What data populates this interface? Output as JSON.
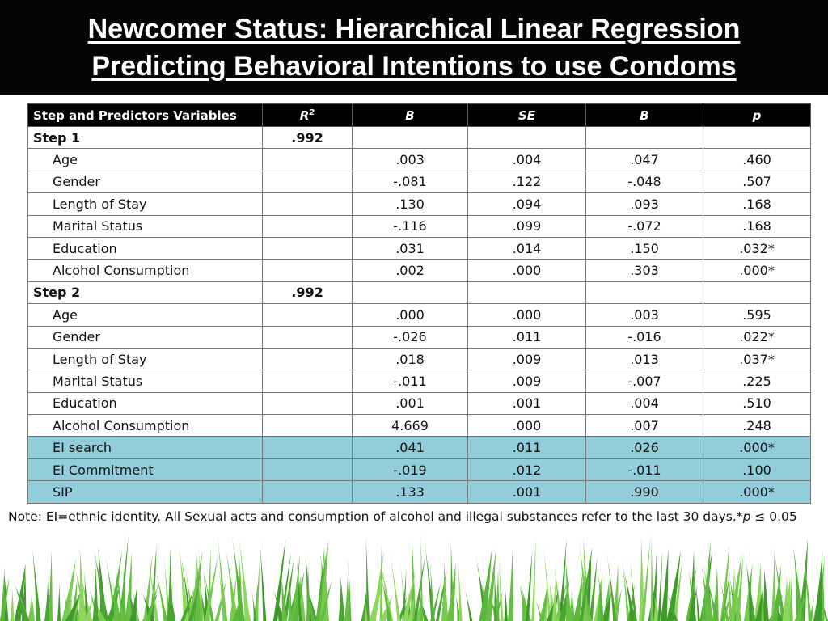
{
  "title": {
    "line1": "Newcomer Status: Hierarchical Linear Regression",
    "line2": "Predicting Behavioral Intentions to use Condoms"
  },
  "table": {
    "headers": [
      "Step and Predictors Variables",
      "R",
      "2",
      "B",
      "SE",
      "Β",
      "p"
    ],
    "rows": [
      {
        "label": "Step 1",
        "r2": ".992",
        "b": "",
        "se": "",
        "beta": "",
        "p": "",
        "step": true
      },
      {
        "label": "Age",
        "r2": "",
        "b": ".003",
        "se": ".004",
        "beta": ".047",
        "p": ".460"
      },
      {
        "label": "Gender",
        "r2": "",
        "b": "-.081",
        "se": ".122",
        "beta": "-.048",
        "p": ".507"
      },
      {
        "label": "Length of Stay",
        "r2": "",
        "b": ".130",
        "se": ".094",
        "beta": ".093",
        "p": ".168"
      },
      {
        "label": "Marital Status",
        "r2": "",
        "b": "-.116",
        "se": ".099",
        "beta": "-.072",
        "p": ".168"
      },
      {
        "label": "Education",
        "r2": "",
        "b": ".031",
        "se": ".014",
        "beta": ".150",
        "p": ".032*"
      },
      {
        "label": "Alcohol Consumption",
        "r2": "",
        "b": ".002",
        "se": ".000",
        "beta": ".303",
        "p": ".000*"
      },
      {
        "label": "Step 2",
        "r2": ".992",
        "b": "",
        "se": "",
        "beta": "",
        "p": "",
        "step": true
      },
      {
        "label": "Age",
        "r2": "",
        "b": ".000",
        "se": ".000",
        "beta": ".003",
        "p": ".595"
      },
      {
        "label": "Gender",
        "r2": "",
        "b": "-.026",
        "se": ".011",
        "beta": "-.016",
        "p": ".022*"
      },
      {
        "label": "Length of Stay",
        "r2": "",
        "b": ".018",
        "se": ".009",
        "beta": ".013",
        "p": ".037*"
      },
      {
        "label": "Marital Status",
        "r2": "",
        "b": "-.011",
        "se": ".009",
        "beta": "-.007",
        "p": ".225"
      },
      {
        "label": "Education",
        "r2": "",
        "b": ".001",
        "se": ".001",
        "beta": ".004",
        "p": ".510"
      },
      {
        "label": "Alcohol Consumption",
        "r2": "",
        "b": "4.669",
        "se": ".000",
        "beta": ".007",
        "p": ".248"
      },
      {
        "label": "EI search",
        "r2": "",
        "b": ".041",
        "se": ".011",
        "beta": ".026",
        "p": ".000*",
        "highlight": true
      },
      {
        "label": "EI Commitment",
        "r2": "",
        "b": "-.019",
        "se": ".012",
        "beta": "-.011",
        "p": ".100",
        "highlight": true
      },
      {
        "label": "SIP",
        "r2": "",
        "b": ".133",
        "se": ".001",
        "beta": ".990",
        "p": ".000*",
        "highlight": true
      }
    ]
  },
  "note": {
    "text": "Note: EI=ethnic identity. All Sexual acts and consumption of alcohol and illegal substances refer to the last 30 days.*",
    "p_symbol": "p",
    "threshold": " ≤ 0.05"
  },
  "colors": {
    "title_bg": "#050505",
    "header_bg": "#000000",
    "highlight_row": "#92cddc",
    "grass": "#6cc24a"
  }
}
